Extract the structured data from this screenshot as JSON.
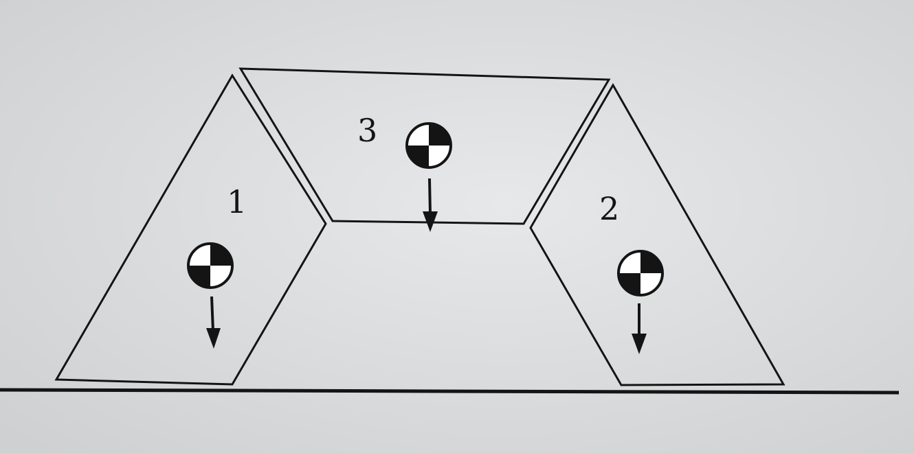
{
  "blocks": [
    {
      "id": "1",
      "label": "1"
    },
    {
      "id": "2",
      "label": "2"
    },
    {
      "id": "3",
      "label": "3"
    }
  ],
  "colors": {
    "background": "#d9dadb",
    "paper_light": "#e6e7e8",
    "ink": "#141414"
  },
  "icons": [
    "center-of-mass-icon",
    "gravity-arrow-icon"
  ]
}
